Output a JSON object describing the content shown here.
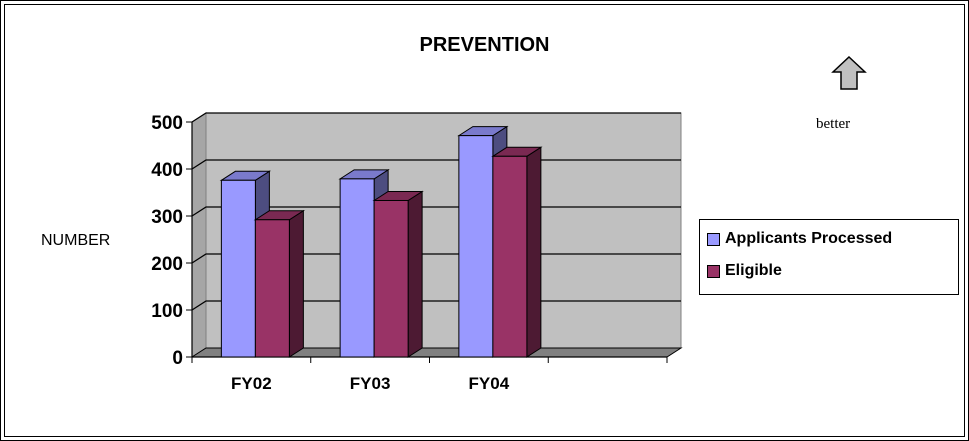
{
  "chart_data": {
    "type": "bar",
    "title": "PREVENTION",
    "ylabel": "NUMBER",
    "xlabel": "",
    "categories": [
      "FY02",
      "FY03",
      "FY04",
      ""
    ],
    "series": [
      {
        "name": "Applicants Processed",
        "color": "#9999FF",
        "values": [
          376,
          379,
          471,
          null
        ]
      },
      {
        "name": "Eligible",
        "color": "#993366",
        "values": [
          292,
          333,
          427,
          null
        ]
      }
    ],
    "ylim": [
      0,
      500
    ],
    "yticks": [
      "0",
      "100",
      "200",
      "300",
      "400",
      "500"
    ],
    "grid": true,
    "legend_position": "right",
    "plot_background": "#C0C0C0",
    "three_d": true
  },
  "annotation": {
    "text": "better",
    "icon": "up-arrow-icon"
  }
}
